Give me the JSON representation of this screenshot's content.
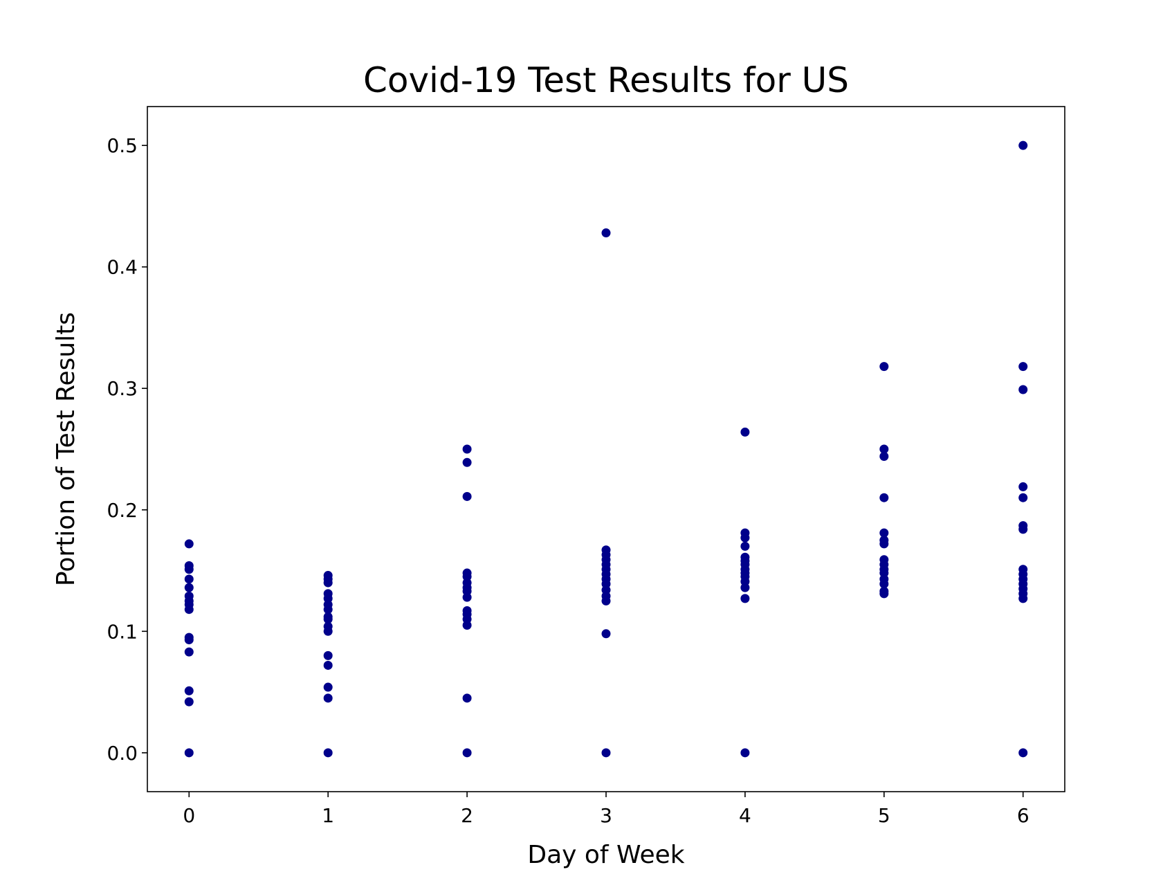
{
  "chart_data": {
    "type": "scatter",
    "title": "Covid-19 Test Results for US",
    "xlabel": "Day of Week",
    "ylabel": "Portion of Test Results",
    "xlim": [
      -0.3,
      6.3
    ],
    "ylim": [
      -0.032,
      0.532
    ],
    "xticks": [
      0,
      1,
      2,
      3,
      4,
      5,
      6
    ],
    "xtick_labels": [
      "0",
      "1",
      "2",
      "3",
      "4",
      "5",
      "6"
    ],
    "yticks": [
      0.0,
      0.1,
      0.2,
      0.3,
      0.4,
      0.5
    ],
    "ytick_labels": [
      "0.0",
      "0.1",
      "0.2",
      "0.3",
      "0.4",
      "0.5"
    ],
    "grid": false,
    "marker_color": "#00008b",
    "series": [
      {
        "name": "Portion of Test Results",
        "points": [
          {
            "x": 0,
            "y": 0.172
          },
          {
            "x": 0,
            "y": 0.154
          },
          {
            "x": 0,
            "y": 0.151
          },
          {
            "x": 0,
            "y": 0.143
          },
          {
            "x": 0,
            "y": 0.136
          },
          {
            "x": 0,
            "y": 0.129
          },
          {
            "x": 0,
            "y": 0.125
          },
          {
            "x": 0,
            "y": 0.122
          },
          {
            "x": 0,
            "y": 0.118
          },
          {
            "x": 0,
            "y": 0.095
          },
          {
            "x": 0,
            "y": 0.093
          },
          {
            "x": 0,
            "y": 0.083
          },
          {
            "x": 0,
            "y": 0.051
          },
          {
            "x": 0,
            "y": 0.042
          },
          {
            "x": 0,
            "y": 0.0
          },
          {
            "x": 1,
            "y": 0.146
          },
          {
            "x": 1,
            "y": 0.143
          },
          {
            "x": 1,
            "y": 0.14
          },
          {
            "x": 1,
            "y": 0.131
          },
          {
            "x": 1,
            "y": 0.127
          },
          {
            "x": 1,
            "y": 0.122
          },
          {
            "x": 1,
            "y": 0.118
          },
          {
            "x": 1,
            "y": 0.112
          },
          {
            "x": 1,
            "y": 0.11
          },
          {
            "x": 1,
            "y": 0.104
          },
          {
            "x": 1,
            "y": 0.1
          },
          {
            "x": 1,
            "y": 0.08
          },
          {
            "x": 1,
            "y": 0.072
          },
          {
            "x": 1,
            "y": 0.054
          },
          {
            "x": 1,
            "y": 0.045
          },
          {
            "x": 1,
            "y": 0.0
          },
          {
            "x": 2,
            "y": 0.25
          },
          {
            "x": 2,
            "y": 0.239
          },
          {
            "x": 2,
            "y": 0.211
          },
          {
            "x": 2,
            "y": 0.148
          },
          {
            "x": 2,
            "y": 0.145
          },
          {
            "x": 2,
            "y": 0.14
          },
          {
            "x": 2,
            "y": 0.136
          },
          {
            "x": 2,
            "y": 0.133
          },
          {
            "x": 2,
            "y": 0.128
          },
          {
            "x": 2,
            "y": 0.117
          },
          {
            "x": 2,
            "y": 0.114
          },
          {
            "x": 2,
            "y": 0.11
          },
          {
            "x": 2,
            "y": 0.105
          },
          {
            "x": 2,
            "y": 0.045
          },
          {
            "x": 2,
            "y": 0.0
          },
          {
            "x": 3,
            "y": 0.428
          },
          {
            "x": 3,
            "y": 0.167
          },
          {
            "x": 3,
            "y": 0.163
          },
          {
            "x": 3,
            "y": 0.159
          },
          {
            "x": 3,
            "y": 0.155
          },
          {
            "x": 3,
            "y": 0.151
          },
          {
            "x": 3,
            "y": 0.147
          },
          {
            "x": 3,
            "y": 0.143
          },
          {
            "x": 3,
            "y": 0.139
          },
          {
            "x": 3,
            "y": 0.134
          },
          {
            "x": 3,
            "y": 0.129
          },
          {
            "x": 3,
            "y": 0.125
          },
          {
            "x": 3,
            "y": 0.098
          },
          {
            "x": 3,
            "y": 0.0
          },
          {
            "x": 4,
            "y": 0.264
          },
          {
            "x": 4,
            "y": 0.181
          },
          {
            "x": 4,
            "y": 0.177
          },
          {
            "x": 4,
            "y": 0.17
          },
          {
            "x": 4,
            "y": 0.161
          },
          {
            "x": 4,
            "y": 0.158
          },
          {
            "x": 4,
            "y": 0.155
          },
          {
            "x": 4,
            "y": 0.151
          },
          {
            "x": 4,
            "y": 0.148
          },
          {
            "x": 4,
            "y": 0.145
          },
          {
            "x": 4,
            "y": 0.141
          },
          {
            "x": 4,
            "y": 0.136
          },
          {
            "x": 4,
            "y": 0.127
          },
          {
            "x": 4,
            "y": 0.0
          },
          {
            "x": 5,
            "y": 0.318
          },
          {
            "x": 5,
            "y": 0.25
          },
          {
            "x": 5,
            "y": 0.244
          },
          {
            "x": 5,
            "y": 0.21
          },
          {
            "x": 5,
            "y": 0.181
          },
          {
            "x": 5,
            "y": 0.175
          },
          {
            "x": 5,
            "y": 0.172
          },
          {
            "x": 5,
            "y": 0.159
          },
          {
            "x": 5,
            "y": 0.155
          },
          {
            "x": 5,
            "y": 0.151
          },
          {
            "x": 5,
            "y": 0.148
          },
          {
            "x": 5,
            "y": 0.143
          },
          {
            "x": 5,
            "y": 0.139
          },
          {
            "x": 5,
            "y": 0.133
          },
          {
            "x": 5,
            "y": 0.131
          },
          {
            "x": 6,
            "y": 0.5
          },
          {
            "x": 6,
            "y": 0.318
          },
          {
            "x": 6,
            "y": 0.299
          },
          {
            "x": 6,
            "y": 0.219
          },
          {
            "x": 6,
            "y": 0.21
          },
          {
            "x": 6,
            "y": 0.187
          },
          {
            "x": 6,
            "y": 0.184
          },
          {
            "x": 6,
            "y": 0.151
          },
          {
            "x": 6,
            "y": 0.147
          },
          {
            "x": 6,
            "y": 0.143
          },
          {
            "x": 6,
            "y": 0.139
          },
          {
            "x": 6,
            "y": 0.135
          },
          {
            "x": 6,
            "y": 0.131
          },
          {
            "x": 6,
            "y": 0.127
          },
          {
            "x": 6,
            "y": 0.0
          }
        ]
      }
    ]
  }
}
